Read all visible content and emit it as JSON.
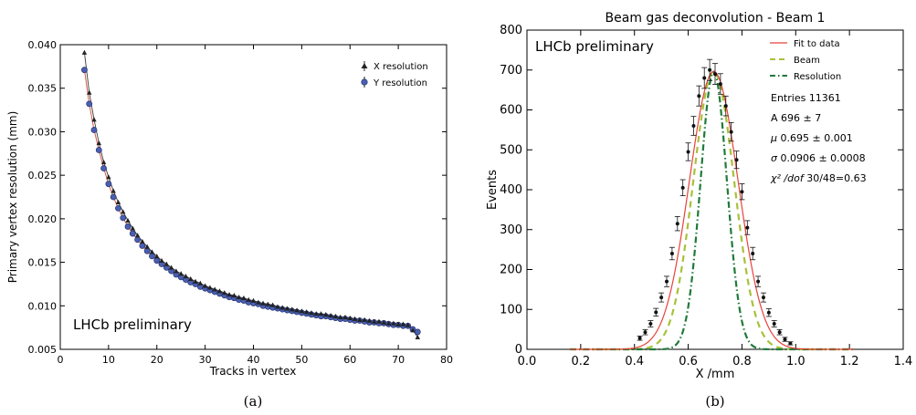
{
  "chart_data": [
    {
      "type": "scatter",
      "panel_label": "(a)",
      "xlabel": "Tracks in vertex",
      "ylabel": "Primary vertex resolution (mm)",
      "xlim": [
        0,
        80
      ],
      "ylim": [
        0.005,
        0.04
      ],
      "xticks": [
        "0",
        "10",
        "20",
        "30",
        "40",
        "50",
        "60",
        "70",
        "80"
      ],
      "yticks": [
        "0.005",
        "0.010",
        "0.015",
        "0.020",
        "0.025",
        "0.030",
        "0.035",
        "0.040"
      ],
      "annotation": "LHCb preliminary",
      "legend_position": "top-right",
      "series": [
        {
          "name": "X resolution",
          "marker": "triangle",
          "color": "#222222",
          "x": [
            5,
            6,
            7,
            8,
            9,
            10,
            11,
            12,
            13,
            14,
            15,
            16,
            17,
            18,
            19,
            20,
            21,
            22,
            23,
            24,
            25,
            26,
            27,
            28,
            29,
            30,
            31,
            32,
            33,
            34,
            35,
            36,
            37,
            38,
            39,
            40,
            41,
            42,
            43,
            44,
            45,
            46,
            47,
            48,
            49,
            50,
            51,
            52,
            53,
            54,
            55,
            56,
            57,
            58,
            59,
            60,
            61,
            62,
            63,
            64,
            65,
            66,
            67,
            68,
            69,
            70,
            71,
            72,
            73,
            74
          ],
          "y": [
            0.0391,
            0.0345,
            0.0314,
            0.0287,
            0.0265,
            0.0248,
            0.0232,
            0.0219,
            0.0208,
            0.0198,
            0.0189,
            0.0181,
            0.0174,
            0.0168,
            0.0162,
            0.0157,
            0.0152,
            0.0148,
            0.0144,
            0.014,
            0.0137,
            0.0134,
            0.0131,
            0.0128,
            0.0126,
            0.0123,
            0.0121,
            0.0119,
            0.0117,
            0.0115,
            0.0113,
            0.0112,
            0.011,
            0.0109,
            0.0107,
            0.0106,
            0.0104,
            0.0103,
            0.0102,
            0.0101,
            0.0099,
            0.0098,
            0.0097,
            0.0096,
            0.0095,
            0.0094,
            0.0093,
            0.0092,
            0.0091,
            0.0091,
            0.009,
            0.0089,
            0.0088,
            0.0087,
            0.0087,
            0.0086,
            0.0085,
            0.0084,
            0.0084,
            0.0083,
            0.0082,
            0.0082,
            0.0081,
            0.008,
            0.008,
            0.0079,
            0.0079,
            0.0078,
            0.0072,
            0.0064
          ]
        },
        {
          "name": "Y resolution",
          "marker": "circle",
          "color": "#4a5fb0",
          "x": [
            5,
            6,
            7,
            8,
            9,
            10,
            11,
            12,
            13,
            14,
            15,
            16,
            17,
            18,
            19,
            20,
            21,
            22,
            23,
            24,
            25,
            26,
            27,
            28,
            29,
            30,
            31,
            32,
            33,
            34,
            35,
            36,
            37,
            38,
            39,
            40,
            41,
            42,
            43,
            44,
            45,
            46,
            47,
            48,
            49,
            50,
            51,
            52,
            53,
            54,
            55,
            56,
            57,
            58,
            59,
            60,
            61,
            62,
            63,
            64,
            65,
            66,
            67,
            68,
            69,
            70,
            71,
            72,
            73,
            74
          ],
          "y": [
            0.0371,
            0.0332,
            0.0302,
            0.0279,
            0.0258,
            0.024,
            0.0225,
            0.0212,
            0.0201,
            0.0191,
            0.0183,
            0.0176,
            0.0169,
            0.0163,
            0.0157,
            0.0152,
            0.0148,
            0.0144,
            0.014,
            0.0136,
            0.0133,
            0.013,
            0.0127,
            0.0125,
            0.0122,
            0.012,
            0.0118,
            0.0116,
            0.0114,
            0.0112,
            0.011,
            0.0109,
            0.0107,
            0.0106,
            0.0104,
            0.0103,
            0.0102,
            0.01,
            0.0099,
            0.0098,
            0.0097,
            0.0096,
            0.0095,
            0.0094,
            0.0093,
            0.0092,
            0.0091,
            0.009,
            0.0089,
            0.0088,
            0.0088,
            0.0087,
            0.0086,
            0.0085,
            0.0085,
            0.0084,
            0.0083,
            0.0083,
            0.0082,
            0.0081,
            0.0081,
            0.008,
            0.008,
            0.0079,
            0.0078,
            0.0078,
            0.0077,
            0.0077,
            0.0073,
            0.007
          ]
        }
      ]
    },
    {
      "type": "line",
      "panel_label": "(b)",
      "title": "Beam gas deconvolution - Beam 1",
      "xlabel": "X /mm",
      "ylabel": "Events",
      "xlim": [
        0.0,
        1.4
      ],
      "ylim": [
        0,
        800
      ],
      "xticks": [
        "0.0",
        "0.2",
        "0.4",
        "0.6",
        "0.8",
        "1.0",
        "1.2",
        "1.4"
      ],
      "yticks": [
        "0",
        "100",
        "200",
        "300",
        "400",
        "500",
        "600",
        "700",
        "800"
      ],
      "annotation": "LHCb preliminary",
      "legend_position": "top-right",
      "legend": [
        {
          "label": "Fit to data",
          "style": "solid",
          "color": "#e8423a"
        },
        {
          "label": "Beam",
          "style": "dashed",
          "color": "#a7c13a"
        },
        {
          "label": "Resolution",
          "style": "dashdot",
          "color": "#1f7a3a"
        }
      ],
      "stats": [
        {
          "label": "Entries",
          "value": "11361"
        },
        {
          "label": "A",
          "value": "696 ± 7"
        },
        {
          "label": "μ",
          "value": "0.695 ± 0.001"
        },
        {
          "label": "σ",
          "value": "0.0906 ± 0.0008"
        },
        {
          "label": "χ² /dof",
          "value": "30/48=0.63"
        }
      ],
      "curves": {
        "fit": {
          "amplitude": 696,
          "mean": 0.695,
          "sigma": 0.0906
        },
        "beam": {
          "amplitude": 696,
          "mean": 0.695,
          "sigma": 0.076
        },
        "resolution": {
          "amplitude": 696,
          "mean": 0.695,
          "sigma": 0.049
        }
      },
      "points": {
        "x": [
          0.42,
          0.44,
          0.46,
          0.48,
          0.5,
          0.52,
          0.54,
          0.56,
          0.58,
          0.6,
          0.62,
          0.64,
          0.66,
          0.68,
          0.7,
          0.72,
          0.74,
          0.76,
          0.78,
          0.8,
          0.82,
          0.84,
          0.86,
          0.88,
          0.9,
          0.92,
          0.94,
          0.96,
          0.98
        ],
        "y": [
          28,
          43,
          64,
          93,
          130,
          170,
          240,
          315,
          405,
          495,
          560,
          635,
          680,
          700,
          690,
          665,
          610,
          545,
          475,
          395,
          305,
          240,
          170,
          130,
          92,
          64,
          43,
          25,
          15
        ]
      }
    }
  ]
}
